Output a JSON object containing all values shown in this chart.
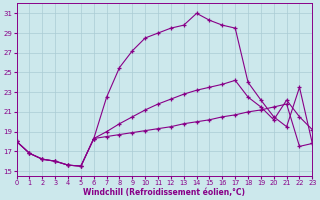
{
  "xlabel": "Windchill (Refroidissement éolien,°C)",
  "bg_color": "#cce8ec",
  "grid_color": "#aaccd4",
  "line_color": "#880088",
  "xlim": [
    0,
    23
  ],
  "ylim": [
    14.5,
    32
  ],
  "xticks": [
    0,
    1,
    2,
    3,
    4,
    5,
    6,
    7,
    8,
    9,
    10,
    11,
    12,
    13,
    14,
    15,
    16,
    17,
    18,
    19,
    20,
    21,
    22,
    23
  ],
  "yticks": [
    15,
    17,
    19,
    21,
    23,
    25,
    27,
    29,
    31
  ],
  "series1_x": [
    0,
    1,
    2,
    3,
    4,
    5,
    6,
    7,
    8,
    9,
    10,
    11,
    12,
    13,
    14,
    15,
    16,
    17,
    18,
    19,
    20,
    21,
    22,
    23
  ],
  "series1_y": [
    18.0,
    16.8,
    16.2,
    16.0,
    15.6,
    15.5,
    18.3,
    22.5,
    25.5,
    27.2,
    28.5,
    29.0,
    29.5,
    29.8,
    31.0,
    30.3,
    29.8,
    29.5,
    24.0,
    22.2,
    20.5,
    19.5,
    23.5,
    17.8
  ],
  "series2_x": [
    0,
    1,
    2,
    3,
    4,
    5,
    6,
    7,
    8,
    9,
    10,
    11,
    12,
    13,
    14,
    15,
    16,
    17,
    18,
    19,
    20,
    21,
    22,
    23
  ],
  "series2_y": [
    18.0,
    16.8,
    16.2,
    16.0,
    15.6,
    15.5,
    18.3,
    19.0,
    19.8,
    20.5,
    21.2,
    21.8,
    22.3,
    22.8,
    23.2,
    23.5,
    23.8,
    24.2,
    22.5,
    21.5,
    20.2,
    22.2,
    20.5,
    19.2
  ],
  "series3_x": [
    0,
    1,
    2,
    3,
    4,
    5,
    6,
    7,
    8,
    9,
    10,
    11,
    12,
    13,
    14,
    15,
    16,
    17,
    18,
    19,
    20,
    21,
    22,
    23
  ],
  "series3_y": [
    18.0,
    16.8,
    16.2,
    16.0,
    15.6,
    15.5,
    18.3,
    18.5,
    18.7,
    18.9,
    19.1,
    19.3,
    19.5,
    19.8,
    20.0,
    20.2,
    20.5,
    20.7,
    21.0,
    21.2,
    21.5,
    21.8,
    17.5,
    17.8
  ]
}
